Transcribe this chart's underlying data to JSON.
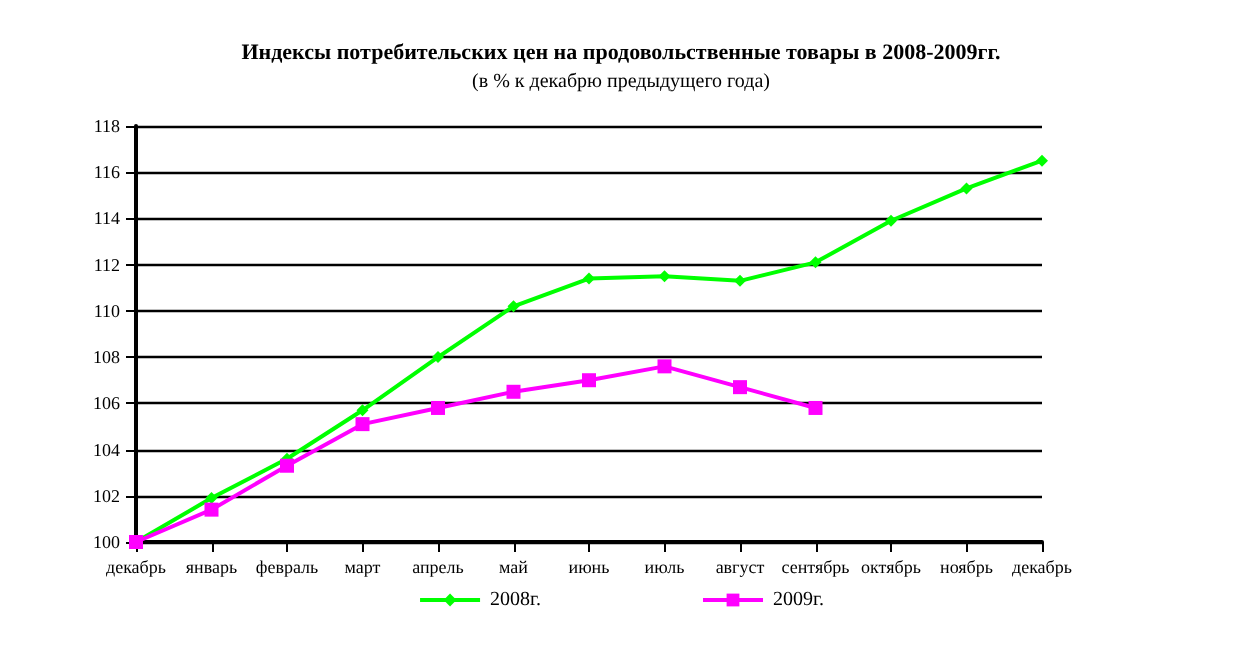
{
  "chart_data": {
    "type": "line",
    "title": "Индексы потребительских цен на продовольственные товары в 2008-2009гг.",
    "subtitle": "(в % к декабрю предыдущего года)",
    "categories": [
      "декабрь",
      "январь",
      "февраль",
      "март",
      "апрель",
      "май",
      "июнь",
      "июль",
      "август",
      "сентябрь",
      "октябрь",
      "ноябрь",
      "декабрь"
    ],
    "series": [
      {
        "name": "2008г.",
        "color": "#00ff00",
        "marker": "diamond",
        "values": [
          100,
          101.9,
          103.6,
          105.7,
          108.0,
          110.2,
          111.4,
          111.5,
          111.3,
          112.1,
          113.9,
          115.3,
          116.5
        ]
      },
      {
        "name": "2009г.",
        "color": "#ff00ff",
        "marker": "square",
        "values": [
          100,
          101.4,
          103.3,
          105.1,
          105.8,
          106.5,
          107.0,
          107.6,
          106.7,
          105.8,
          null,
          null,
          null
        ]
      }
    ],
    "ylim": [
      100,
      118
    ],
    "yticks": [
      100,
      102,
      104,
      106,
      108,
      110,
      112,
      114,
      116,
      118
    ],
    "grid": "y",
    "legend": "bottom"
  }
}
